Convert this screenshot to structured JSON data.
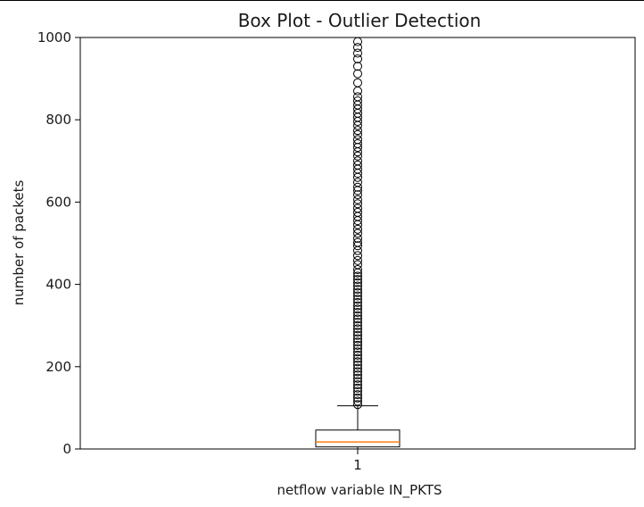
{
  "chart_data": {
    "type": "box",
    "title": "Box Plot - Outlier Detection",
    "xlabel": "netflow variable IN_PKTS",
    "ylabel": "number of packets",
    "ylim": [
      0,
      1000
    ],
    "yticks": [
      0,
      200,
      400,
      600,
      800,
      1000
    ],
    "categories": [
      "1"
    ],
    "series": [
      {
        "box": {
          "min": 0,
          "q1": 5,
          "median": 17,
          "q3": 46,
          "whisker_high": 105
        },
        "outliers": [
          108,
          116,
          124,
          132,
          140,
          148,
          156,
          164,
          172,
          180,
          188,
          196,
          204,
          212,
          220,
          228,
          236,
          244,
          252,
          260,
          268,
          276,
          284,
          292,
          300,
          308,
          316,
          324,
          332,
          340,
          348,
          356,
          364,
          372,
          380,
          388,
          396,
          404,
          412,
          420,
          428,
          436,
          448,
          458,
          470,
          482,
          494,
          502,
          512,
          524,
          534,
          545,
          555,
          565,
          575,
          585,
          596,
          606,
          618,
          628,
          636,
          648,
          660,
          670,
          680,
          690,
          700,
          712,
          722,
          733,
          742,
          752,
          764,
          774,
          786,
          796,
          806,
          816,
          826,
          836,
          846,
          856,
          870,
          890,
          912,
          930,
          948,
          962,
          976,
          990
        ]
      }
    ],
    "colors": {
      "box": "#000000",
      "median": "#ff7f0e",
      "axes": "#000000",
      "outlier_edge": "#000000"
    },
    "grid": false
  }
}
